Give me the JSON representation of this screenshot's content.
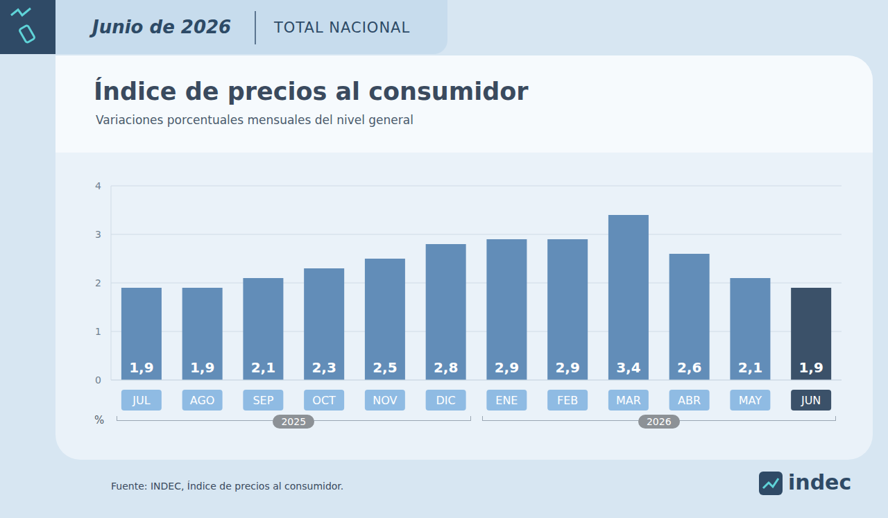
{
  "header": {
    "date": "Junio de 2026",
    "scope": "TOTAL NACIONAL"
  },
  "chart_data": {
    "type": "bar",
    "title": "Índice de precios al consumidor",
    "subtitle": "Variaciones porcentuales mensuales del nivel general",
    "y_label": "%",
    "categories": [
      "JUL",
      "AGO",
      "SEP",
      "OCT",
      "NOV",
      "DIC",
      "ENE",
      "FEB",
      "MAR",
      "ABR",
      "MAY",
      "JUN"
    ],
    "values": [
      1.9,
      1.9,
      2.1,
      2.3,
      2.5,
      2.8,
      2.9,
      2.9,
      3.4,
      2.6,
      2.1,
      1.9
    ],
    "value_labels": [
      "1,9",
      "1,9",
      "2,1",
      "2,3",
      "2,5",
      "2,8",
      "2,9",
      "2,9",
      "3,4",
      "2,6",
      "2,1",
      "1,9"
    ],
    "colors": [
      "#628db8",
      "#628db8",
      "#628db8",
      "#628db8",
      "#628db8",
      "#628db8",
      "#628db8",
      "#628db8",
      "#628db8",
      "#628db8",
      "#628db8",
      "#3b5169"
    ],
    "ylim": [
      0,
      4
    ],
    "yticks": [
      0,
      1,
      2,
      3,
      4
    ],
    "grid": true,
    "data_labels": true,
    "groups": [
      {
        "label": "2025",
        "categories": [
          "JUL",
          "AGO",
          "SEP",
          "OCT",
          "NOV",
          "DIC"
        ]
      },
      {
        "label": "2026",
        "categories": [
          "ENE",
          "FEB",
          "MAR",
          "ABR",
          "MAY",
          "JUN"
        ]
      }
    ]
  },
  "source": "Fuente: INDEC, Índice de precios al consumidor.",
  "logo": "indec"
}
